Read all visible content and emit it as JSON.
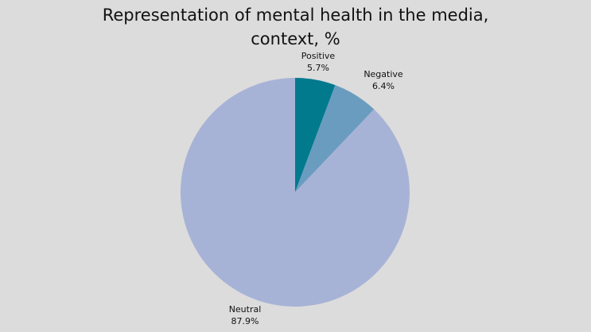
{
  "chart_data": {
    "type": "pie",
    "title_lines": [
      "Representation of mental health in the media,",
      "context, %"
    ],
    "slices": [
      {
        "label": "Positive",
        "value": 5.7,
        "value_label": "5.7%",
        "color": "#017a8e"
      },
      {
        "label": "Negative",
        "value": 6.4,
        "value_label": "6.4%",
        "color": "#6a9cc0"
      },
      {
        "label": "Neutral",
        "value": 87.9,
        "value_label": "87.9%",
        "color": "#a7b3d6"
      }
    ],
    "start_angle": "12 o'clock",
    "direction": "clockwise",
    "legend": "none"
  }
}
